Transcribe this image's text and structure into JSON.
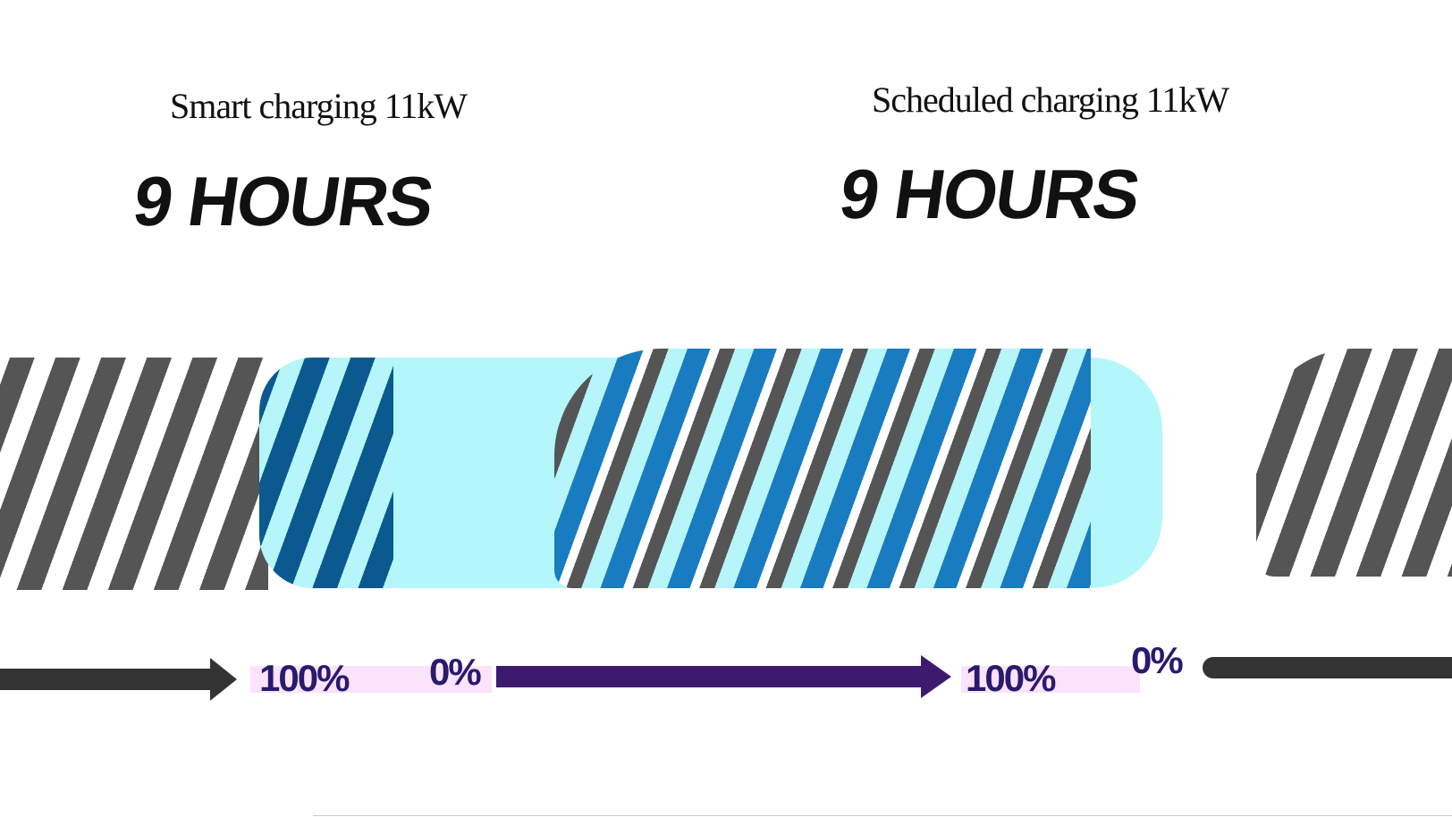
{
  "panels": [
    {
      "title": "Smart charging 11kW",
      "duration": "9 HOURS",
      "start_label": "100%",
      "end_label": "0%"
    },
    {
      "title": "Scheduled charging 11kW",
      "duration": "9 HOURS",
      "start_label": "100%",
      "end_label": "0%"
    }
  ],
  "colors": {
    "stripe_gray": "#555555",
    "stripe_blue": "#0a5a8f",
    "cyan": "#b4f7fb",
    "arrow_dark": "#333333",
    "arrow_purple": "#3d1a6e",
    "highlight_pink": "#fbe3fb"
  }
}
